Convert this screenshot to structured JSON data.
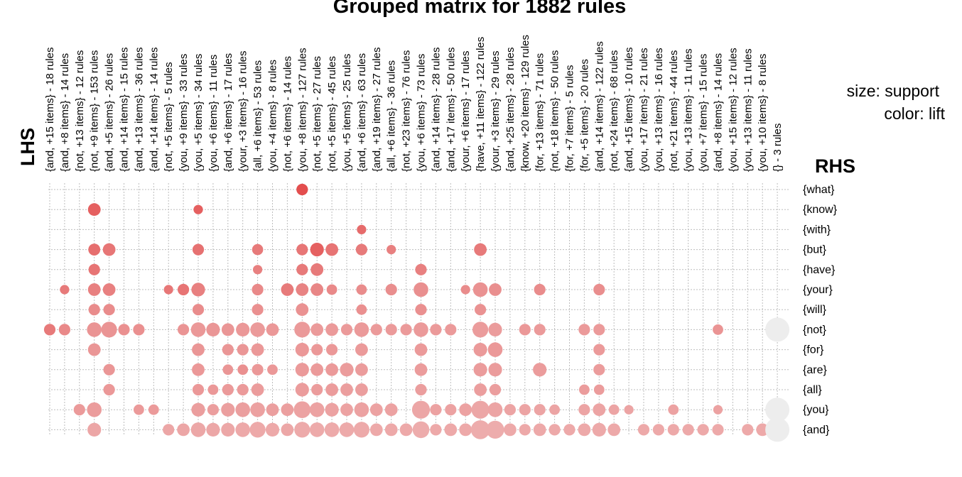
{
  "chart_data": {
    "type": "grouped_matrix",
    "title": "Grouped matrix for 1882 rules",
    "lhs_axis_label": "LHS",
    "rhs_axis_label": "RHS",
    "legend": {
      "size_label": "size: support",
      "color_label": "color: lift",
      "position": "top-right"
    },
    "grid": true,
    "lhs_groups": [
      "{and, +15 items} - 18 rules",
      "{and, +8 items} - 14 rules",
      "{not, +13 items} - 12 rules",
      "{not, +9 items} - 153 rules",
      "{and, +5 items} - 26 rules",
      "{and, +14 items} - 15 rules",
      "{and, +13 items} - 36 rules",
      "{and, +14 items} - 14 rules",
      "{not, +5 items} - 5 rules",
      "{you, +9 items} - 33 rules",
      "{you, +5 items} - 34 rules",
      "{you, +6 items} - 11 rules",
      "{and, +6 items} - 17 rules",
      "{your, +3 items} - 16 rules",
      "{all, +6 items} - 53 rules",
      "{you, +4 items} - 8 rules",
      "{not, +6 items} - 14 rules",
      "{you, +8 items} - 127 rules",
      "{not, +5 items} - 27 rules",
      "{not, +5 items} - 45 rules",
      "{you, +5 items} - 25 rules",
      "{and, +6 items} - 63 rules",
      "{and, +19 items} - 27 rules",
      "{all, +6 items} - 36 rules",
      "{not, +23 items} - 76 rules",
      "{you, +6 items} - 73 rules",
      "{and, +14 items} - 28 rules",
      "{and, +17 items} - 50 rules",
      "{your, +6 items} - 17 rules",
      "{have, +11 items} - 122 rules",
      "{your, +3 items} - 29 rules",
      "{and, +25 items} - 28 rules",
      "{know, +20 items} - 129 rules",
      "{for, +13 items} - 71 rules",
      "{not, +18 items} - 50 rules",
      "{for, +7 items} - 5 rules",
      "{for, +5 items} - 20 rules",
      "{and, +14 items} - 122 rules",
      "{not, +24 items} - 68 rules",
      "{and, +15 items} - 10 rules",
      "{you, +17 items} - 21 rules",
      "{you, +13 items} - 16 rules",
      "{not, +21 items} - 44 rules",
      "{you, +13 items} - 11 rules",
      "{you, +7 items} - 15 rules",
      "{and, +8 items} - 14 rules",
      "{you, +15 items} - 12 rules",
      "{you, +13 items} - 11 rules",
      "{you, +10 items} - 8 rules",
      "{} - 3 rules"
    ],
    "rhs_items": [
      "{what}",
      "{know}",
      "{with}",
      "{but}",
      "{have}",
      "{your}",
      "{will}",
      "{not}",
      "{for}",
      "{are}",
      "{all}",
      "{you}",
      "{and}"
    ],
    "size_scale_note": "support value 0-1 (relative)",
    "lift_scale": "higher lift = darker red; lowest lift = light grey",
    "cells": [
      [
        17,
        0,
        0.4,
        0.92
      ],
      [
        3,
        1,
        0.45,
        0.8
      ],
      [
        10,
        1,
        0.3,
        0.8
      ],
      [
        21,
        2,
        0.3,
        0.72
      ],
      [
        3,
        3,
        0.42,
        0.7
      ],
      [
        4,
        3,
        0.45,
        0.65
      ],
      [
        10,
        3,
        0.4,
        0.68
      ],
      [
        14,
        3,
        0.38,
        0.62
      ],
      [
        17,
        3,
        0.4,
        0.65
      ],
      [
        18,
        3,
        0.5,
        0.8
      ],
      [
        19,
        3,
        0.45,
        0.66
      ],
      [
        21,
        3,
        0.4,
        0.62
      ],
      [
        23,
        3,
        0.3,
        0.58
      ],
      [
        29,
        3,
        0.45,
        0.62
      ],
      [
        3,
        4,
        0.4,
        0.66
      ],
      [
        14,
        4,
        0.3,
        0.58
      ],
      [
        17,
        4,
        0.4,
        0.62
      ],
      [
        18,
        4,
        0.45,
        0.62
      ],
      [
        25,
        4,
        0.4,
        0.58
      ],
      [
        1,
        5,
        0.3,
        0.62
      ],
      [
        3,
        5,
        0.45,
        0.58
      ],
      [
        4,
        5,
        0.45,
        0.58
      ],
      [
        8,
        5,
        0.3,
        0.64
      ],
      [
        9,
        5,
        0.4,
        0.66
      ],
      [
        10,
        5,
        0.5,
        0.58
      ],
      [
        14,
        5,
        0.4,
        0.52
      ],
      [
        16,
        5,
        0.45,
        0.62
      ],
      [
        17,
        5,
        0.45,
        0.56
      ],
      [
        18,
        5,
        0.45,
        0.54
      ],
      [
        19,
        5,
        0.35,
        0.52
      ],
      [
        21,
        5,
        0.35,
        0.5
      ],
      [
        23,
        5,
        0.4,
        0.48
      ],
      [
        25,
        5,
        0.55,
        0.46
      ],
      [
        28,
        5,
        0.3,
        0.5
      ],
      [
        29,
        5,
        0.55,
        0.42
      ],
      [
        30,
        5,
        0.45,
        0.46
      ],
      [
        33,
        5,
        0.4,
        0.5
      ],
      [
        37,
        5,
        0.4,
        0.48
      ],
      [
        3,
        6,
        0.4,
        0.5
      ],
      [
        4,
        6,
        0.4,
        0.5
      ],
      [
        10,
        6,
        0.4,
        0.5
      ],
      [
        14,
        6,
        0.4,
        0.45
      ],
      [
        17,
        6,
        0.45,
        0.42
      ],
      [
        21,
        6,
        0.35,
        0.45
      ],
      [
        25,
        6,
        0.4,
        0.45
      ],
      [
        29,
        6,
        0.4,
        0.42
      ],
      [
        0,
        7,
        0.4,
        0.62
      ],
      [
        1,
        7,
        0.4,
        0.52
      ],
      [
        3,
        7,
        0.55,
        0.4
      ],
      [
        4,
        7,
        0.6,
        0.4
      ],
      [
        5,
        7,
        0.4,
        0.45
      ],
      [
        6,
        7,
        0.4,
        0.45
      ],
      [
        9,
        7,
        0.4,
        0.4
      ],
      [
        10,
        7,
        0.55,
        0.35
      ],
      [
        11,
        7,
        0.5,
        0.38
      ],
      [
        12,
        7,
        0.45,
        0.38
      ],
      [
        13,
        7,
        0.5,
        0.35
      ],
      [
        14,
        7,
        0.55,
        0.33
      ],
      [
        15,
        7,
        0.45,
        0.35
      ],
      [
        17,
        7,
        0.6,
        0.33
      ],
      [
        18,
        7,
        0.45,
        0.33
      ],
      [
        19,
        7,
        0.45,
        0.33
      ],
      [
        20,
        7,
        0.4,
        0.33
      ],
      [
        21,
        7,
        0.55,
        0.33
      ],
      [
        22,
        7,
        0.4,
        0.33
      ],
      [
        23,
        7,
        0.4,
        0.33
      ],
      [
        24,
        7,
        0.4,
        0.33
      ],
      [
        25,
        7,
        0.55,
        0.33
      ],
      [
        26,
        7,
        0.4,
        0.33
      ],
      [
        27,
        7,
        0.4,
        0.33
      ],
      [
        29,
        7,
        0.6,
        0.3
      ],
      [
        30,
        7,
        0.5,
        0.3
      ],
      [
        32,
        7,
        0.4,
        0.35
      ],
      [
        33,
        7,
        0.4,
        0.32
      ],
      [
        36,
        7,
        0.4,
        0.32
      ],
      [
        37,
        7,
        0.4,
        0.32
      ],
      [
        45,
        7,
        0.35,
        0.4
      ],
      [
        49,
        7,
        1.0,
        0.0
      ],
      [
        3,
        8,
        0.45,
        0.38
      ],
      [
        10,
        8,
        0.45,
        0.38
      ],
      [
        12,
        8,
        0.4,
        0.38
      ],
      [
        13,
        8,
        0.4,
        0.38
      ],
      [
        14,
        8,
        0.45,
        0.35
      ],
      [
        17,
        8,
        0.5,
        0.35
      ],
      [
        18,
        8,
        0.4,
        0.35
      ],
      [
        19,
        8,
        0.4,
        0.35
      ],
      [
        21,
        8,
        0.45,
        0.33
      ],
      [
        25,
        8,
        0.45,
        0.33
      ],
      [
        29,
        8,
        0.5,
        0.33
      ],
      [
        30,
        8,
        0.55,
        0.35
      ],
      [
        37,
        8,
        0.4,
        0.33
      ],
      [
        4,
        9,
        0.4,
        0.38
      ],
      [
        10,
        9,
        0.45,
        0.35
      ],
      [
        12,
        9,
        0.35,
        0.38
      ],
      [
        13,
        9,
        0.35,
        0.45
      ],
      [
        14,
        9,
        0.4,
        0.35
      ],
      [
        15,
        9,
        0.35,
        0.35
      ],
      [
        17,
        9,
        0.5,
        0.33
      ],
      [
        18,
        9,
        0.45,
        0.33
      ],
      [
        19,
        9,
        0.45,
        0.33
      ],
      [
        20,
        9,
        0.5,
        0.3
      ],
      [
        21,
        9,
        0.45,
        0.3
      ],
      [
        25,
        9,
        0.45,
        0.3
      ],
      [
        29,
        9,
        0.5,
        0.3
      ],
      [
        30,
        9,
        0.5,
        0.3
      ],
      [
        33,
        9,
        0.5,
        0.3
      ],
      [
        37,
        9,
        0.4,
        0.3
      ],
      [
        4,
        10,
        0.4,
        0.35
      ],
      [
        10,
        10,
        0.4,
        0.35
      ],
      [
        11,
        10,
        0.35,
        0.35
      ],
      [
        12,
        10,
        0.4,
        0.32
      ],
      [
        13,
        10,
        0.4,
        0.32
      ],
      [
        14,
        10,
        0.45,
        0.3
      ],
      [
        17,
        10,
        0.5,
        0.3
      ],
      [
        18,
        10,
        0.4,
        0.3
      ],
      [
        19,
        10,
        0.45,
        0.3
      ],
      [
        20,
        10,
        0.45,
        0.28
      ],
      [
        21,
        10,
        0.45,
        0.28
      ],
      [
        25,
        10,
        0.4,
        0.28
      ],
      [
        29,
        10,
        0.45,
        0.28
      ],
      [
        30,
        10,
        0.4,
        0.28
      ],
      [
        36,
        10,
        0.35,
        0.3
      ],
      [
        37,
        10,
        0.35,
        0.3
      ],
      [
        2,
        11,
        0.4,
        0.32
      ],
      [
        3,
        11,
        0.55,
        0.3
      ],
      [
        6,
        11,
        0.35,
        0.32
      ],
      [
        7,
        11,
        0.35,
        0.32
      ],
      [
        10,
        11,
        0.5,
        0.28
      ],
      [
        11,
        11,
        0.4,
        0.28
      ],
      [
        12,
        11,
        0.5,
        0.26
      ],
      [
        13,
        11,
        0.55,
        0.26
      ],
      [
        14,
        11,
        0.55,
        0.24
      ],
      [
        15,
        11,
        0.45,
        0.26
      ],
      [
        16,
        11,
        0.45,
        0.26
      ],
      [
        17,
        11,
        0.65,
        0.22
      ],
      [
        18,
        11,
        0.55,
        0.22
      ],
      [
        19,
        11,
        0.5,
        0.22
      ],
      [
        20,
        11,
        0.45,
        0.22
      ],
      [
        21,
        11,
        0.55,
        0.22
      ],
      [
        22,
        11,
        0.45,
        0.22
      ],
      [
        23,
        11,
        0.45,
        0.22
      ],
      [
        25,
        11,
        0.7,
        0.18
      ],
      [
        26,
        11,
        0.4,
        0.22
      ],
      [
        27,
        11,
        0.4,
        0.22
      ],
      [
        28,
        11,
        0.45,
        0.22
      ],
      [
        29,
        11,
        0.7,
        0.18
      ],
      [
        30,
        11,
        0.55,
        0.2
      ],
      [
        31,
        11,
        0.4,
        0.2
      ],
      [
        32,
        11,
        0.4,
        0.2
      ],
      [
        33,
        11,
        0.4,
        0.2
      ],
      [
        34,
        11,
        0.35,
        0.2
      ],
      [
        36,
        11,
        0.4,
        0.2
      ],
      [
        37,
        11,
        0.45,
        0.2
      ],
      [
        38,
        11,
        0.35,
        0.2
      ],
      [
        39,
        11,
        0.3,
        0.2
      ],
      [
        42,
        11,
        0.35,
        0.22
      ],
      [
        45,
        11,
        0.3,
        0.22
      ],
      [
        49,
        11,
        1.0,
        0.0
      ],
      [
        3,
        12,
        0.5,
        0.18
      ],
      [
        8,
        12,
        0.4,
        0.18
      ],
      [
        9,
        12,
        0.45,
        0.18
      ],
      [
        10,
        12,
        0.55,
        0.16
      ],
      [
        11,
        12,
        0.5,
        0.16
      ],
      [
        12,
        12,
        0.5,
        0.16
      ],
      [
        13,
        12,
        0.55,
        0.14
      ],
      [
        14,
        12,
        0.6,
        0.14
      ],
      [
        15,
        12,
        0.5,
        0.14
      ],
      [
        16,
        12,
        0.45,
        0.16
      ],
      [
        17,
        12,
        0.6,
        0.12
      ],
      [
        18,
        12,
        0.55,
        0.12
      ],
      [
        19,
        12,
        0.55,
        0.12
      ],
      [
        20,
        12,
        0.55,
        0.12
      ],
      [
        21,
        12,
        0.6,
        0.12
      ],
      [
        22,
        12,
        0.45,
        0.14
      ],
      [
        23,
        12,
        0.45,
        0.14
      ],
      [
        24,
        12,
        0.45,
        0.14
      ],
      [
        25,
        12,
        0.65,
        0.1
      ],
      [
        26,
        12,
        0.4,
        0.14
      ],
      [
        27,
        12,
        0.45,
        0.14
      ],
      [
        28,
        12,
        0.45,
        0.14
      ],
      [
        29,
        12,
        0.75,
        0.1
      ],
      [
        30,
        12,
        0.7,
        0.1
      ],
      [
        31,
        12,
        0.45,
        0.14
      ],
      [
        32,
        12,
        0.4,
        0.14
      ],
      [
        33,
        12,
        0.45,
        0.14
      ],
      [
        34,
        12,
        0.4,
        0.14
      ],
      [
        35,
        12,
        0.4,
        0.14
      ],
      [
        36,
        12,
        0.45,
        0.14
      ],
      [
        37,
        12,
        0.5,
        0.14
      ],
      [
        38,
        12,
        0.45,
        0.14
      ],
      [
        40,
        12,
        0.4,
        0.14
      ],
      [
        41,
        12,
        0.4,
        0.14
      ],
      [
        42,
        12,
        0.4,
        0.14
      ],
      [
        43,
        12,
        0.4,
        0.14
      ],
      [
        44,
        12,
        0.4,
        0.14
      ],
      [
        45,
        12,
        0.4,
        0.14
      ],
      [
        47,
        12,
        0.4,
        0.14
      ],
      [
        48,
        12,
        0.45,
        0.14
      ],
      [
        49,
        12,
        1.0,
        0.0
      ]
    ]
  }
}
